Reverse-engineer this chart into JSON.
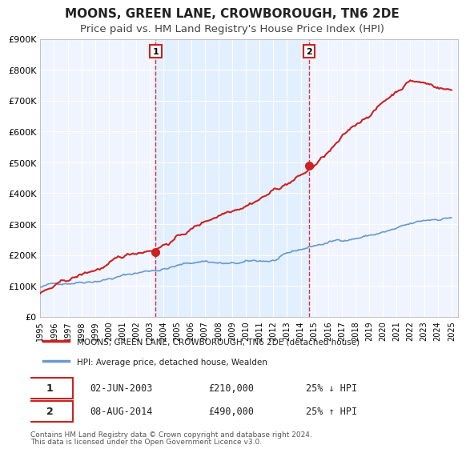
{
  "title": "MOONS, GREEN LANE, CROWBOROUGH, TN6 2DE",
  "subtitle": "Price paid vs. HM Land Registry's House Price Index (HPI)",
  "title_fontsize": 11,
  "subtitle_fontsize": 9.5,
  "background_color": "#ffffff",
  "plot_bg_color": "#f0f4ff",
  "grid_color": "#ffffff",
  "xlabel": "",
  "ylabel": "",
  "ylim": [
    0,
    900000
  ],
  "ytick_labels": [
    "£0",
    "£100K",
    "£200K",
    "£300K",
    "£400K",
    "£500K",
    "£600K",
    "£700K",
    "£800K",
    "£900K"
  ],
  "ytick_values": [
    0,
    100000,
    200000,
    300000,
    400000,
    500000,
    600000,
    700000,
    800000,
    900000
  ],
  "xmin": 1995.0,
  "xmax": 2025.5,
  "sale1_x": 2003.42,
  "sale1_y": 210000,
  "sale1_label": "02-JUN-2003",
  "sale1_price": "£210,000",
  "sale1_note": "25% ↓ HPI",
  "sale2_x": 2014.6,
  "sale2_y": 490000,
  "sale2_label": "08-AUG-2014",
  "sale2_price": "£490,000",
  "sale2_note": "25% ↑ HPI",
  "line1_color": "#cc2222",
  "line2_color": "#6699cc",
  "marker_color": "#cc2222",
  "vline_color": "#dd3333",
  "shade_color": "#ddeeff",
  "legend_line1": "MOONS, GREEN LANE, CROWBOROUGH, TN6 2DE (detached house)",
  "legend_line2": "HPI: Average price, detached house, Wealden",
  "footer1": "Contains HM Land Registry data © Crown copyright and database right 2024.",
  "footer2": "This data is licensed under the Open Government Licence v3.0."
}
